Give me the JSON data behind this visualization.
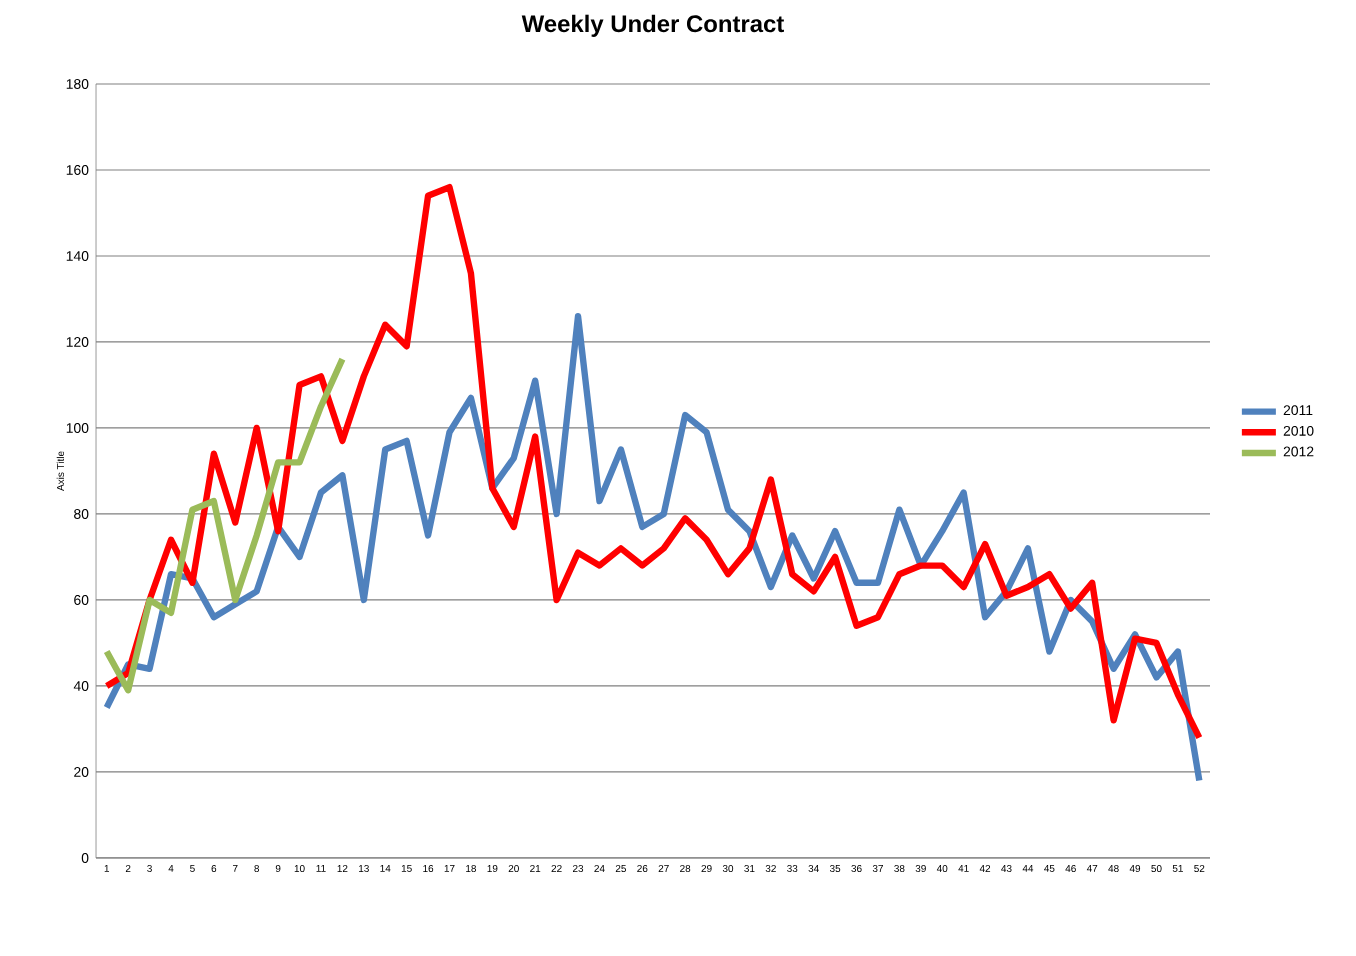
{
  "chart_data": {
    "type": "line",
    "title": "Weekly Under Contract",
    "ylabel": "Axis Title",
    "categories": [
      "1",
      "2",
      "3",
      "4",
      "5",
      "6",
      "7",
      "8",
      "9",
      "10",
      "11",
      "12",
      "13",
      "14",
      "15",
      "16",
      "17",
      "18",
      "19",
      "20",
      "21",
      "22",
      "23",
      "24",
      "25",
      "26",
      "27",
      "28",
      "29",
      "30",
      "31",
      "32",
      "33",
      "34",
      "35",
      "36",
      "37",
      "38",
      "39",
      "40",
      "41",
      "42",
      "43",
      "44",
      "45",
      "46",
      "47",
      "48",
      "49",
      "50",
      "51",
      "52"
    ],
    "series": [
      {
        "name": "2011",
        "color": "#4f81bd",
        "values": [
          35,
          45,
          44,
          66,
          65,
          56,
          59,
          62,
          77,
          70,
          85,
          89,
          60,
          95,
          97,
          75,
          99,
          107,
          86,
          93,
          111,
          80,
          126,
          83,
          95,
          77,
          80,
          103,
          99,
          81,
          76,
          63,
          75,
          65,
          76,
          64,
          64,
          81,
          68,
          76,
          85,
          56,
          62,
          72,
          48,
          60,
          55,
          44,
          52,
          42,
          48,
          18
        ]
      },
      {
        "name": "2010",
        "color": "#ff0000",
        "values": [
          40,
          43,
          60,
          74,
          64,
          94,
          78,
          100,
          76,
          110,
          112,
          97,
          112,
          124,
          119,
          154,
          156,
          136,
          86,
          77,
          98,
          60,
          71,
          68,
          72,
          68,
          72,
          79,
          74,
          66,
          72,
          88,
          66,
          62,
          70,
          54,
          56,
          66,
          68,
          68,
          63,
          73,
          61,
          63,
          66,
          58,
          64,
          32,
          51,
          50,
          38,
          28
        ]
      },
      {
        "name": "2012",
        "color": "#9bbb59",
        "values": [
          48,
          39,
          60,
          57,
          81,
          83,
          60,
          75,
          92,
          92,
          105,
          116,
          null,
          null,
          null,
          null,
          null,
          null,
          null,
          null,
          null,
          null,
          null,
          null,
          null,
          null,
          null,
          null,
          null,
          null,
          null,
          null,
          null,
          null,
          null,
          null,
          null,
          null,
          null,
          null,
          null,
          null,
          null,
          null,
          null,
          null,
          null,
          null,
          null,
          null,
          null,
          null
        ]
      }
    ],
    "ylim": [
      0,
      180
    ],
    "yticks": [
      0,
      20,
      40,
      60,
      80,
      100,
      120,
      140,
      160,
      180
    ],
    "grid": "y",
    "legend": "right",
    "marker": "none",
    "line_style": "solid"
  }
}
